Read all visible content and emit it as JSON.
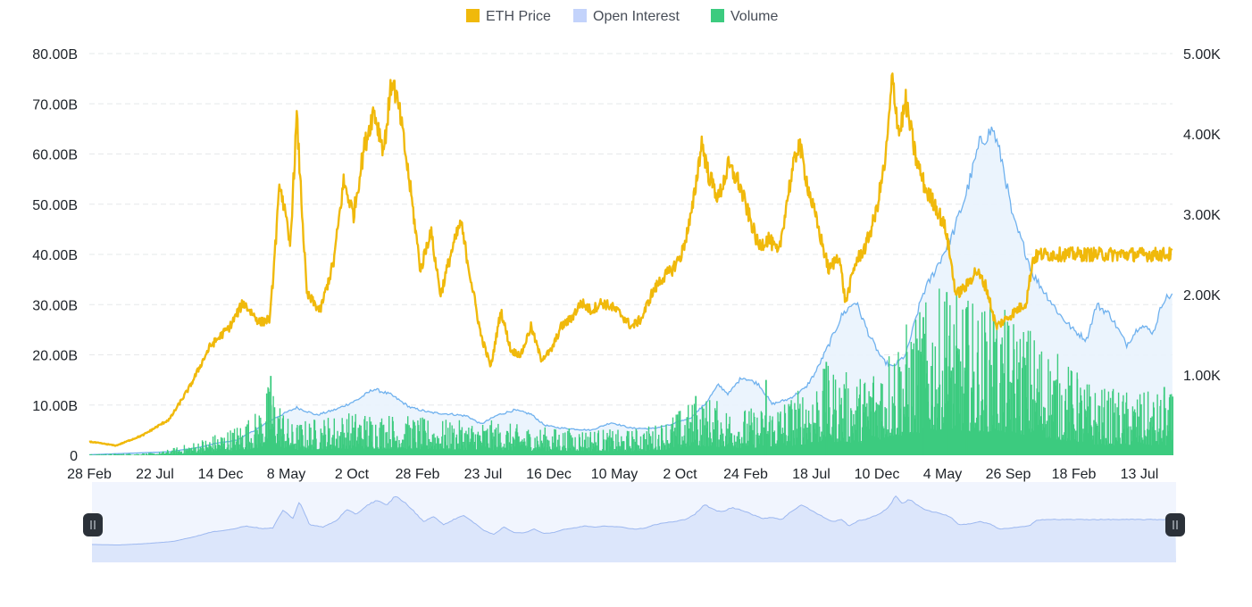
{
  "legend": {
    "items": [
      {
        "label": "ETH Price",
        "color": "#F0B90B"
      },
      {
        "label": "Open Interest",
        "color": "#C3D3FB"
      },
      {
        "label": "Volume",
        "color": "#3CCB7F"
      }
    ]
  },
  "colors": {
    "price_line": "#F0B90B",
    "oi_line": "#6FB1EE",
    "oi_fill": "#E9F3FD",
    "volume_bar": "#3CCB7F",
    "grid": "#E6E8EA",
    "axis_text": "#1E2329",
    "navigator_bg": "#F1F5FE",
    "navigator_fill": "#DCE6FB",
    "navigator_line": "#9DB8F0",
    "handle": "#2B3139"
  },
  "chart_data": {
    "type": "line",
    "title": "",
    "left_axis": {
      "range": [
        0,
        80000000000
      ],
      "tick_values": [
        0,
        10000000000,
        20000000000,
        30000000000,
        40000000000,
        50000000000,
        60000000000,
        70000000000,
        80000000000
      ],
      "tick_labels": [
        "0",
        "10.00B",
        "20.00B",
        "30.00B",
        "40.00B",
        "50.00B",
        "60.00B",
        "70.00B",
        "80.00B"
      ]
    },
    "right_axis": {
      "range": [
        0,
        5000
      ],
      "tick_values": [
        1000,
        2000,
        3000,
        4000,
        5000
      ],
      "tick_labels": [
        "1.00K",
        "2.00K",
        "3.00K",
        "4.00K",
        "5.00K"
      ]
    },
    "x_axis": {
      "tick_labels": [
        "28 Feb",
        "22 Jul",
        "14 Dec",
        "8 May",
        "2 Oct",
        "28 Feb",
        "23 Jul",
        "16 Dec",
        "10 May",
        "2 Oct",
        "24 Feb",
        "18 Jul",
        "10 Dec",
        "4 May",
        "26 Sep",
        "18 Feb",
        "13 Jul"
      ]
    },
    "grid": true,
    "legend_position": "top-center",
    "series": [
      {
        "name": "ETH Price",
        "axis": "right",
        "type": "line",
        "points": [
          [
            0,
            170
          ],
          [
            80,
            120
          ],
          [
            160,
            250
          ],
          [
            240,
            450
          ],
          [
            300,
            850
          ],
          [
            360,
            1350
          ],
          [
            420,
            1600
          ],
          [
            460,
            1900
          ],
          [
            510,
            1650
          ],
          [
            540,
            1700
          ],
          [
            570,
            3400
          ],
          [
            600,
            2600
          ],
          [
            620,
            4200
          ],
          [
            650,
            2000
          ],
          [
            690,
            1800
          ],
          [
            730,
            2400
          ],
          [
            760,
            3400
          ],
          [
            790,
            3000
          ],
          [
            820,
            3800
          ],
          [
            850,
            4300
          ],
          [
            880,
            3800
          ],
          [
            905,
            4700
          ],
          [
            930,
            4200
          ],
          [
            960,
            3300
          ],
          [
            990,
            2300
          ],
          [
            1020,
            2800
          ],
          [
            1050,
            2000
          ],
          [
            1080,
            2500
          ],
          [
            1110,
            2900
          ],
          [
            1140,
            2200
          ],
          [
            1170,
            1500
          ],
          [
            1200,
            1100
          ],
          [
            1230,
            1800
          ],
          [
            1260,
            1300
          ],
          [
            1290,
            1250
          ],
          [
            1320,
            1600
          ],
          [
            1350,
            1200
          ],
          [
            1380,
            1300
          ],
          [
            1410,
            1600
          ],
          [
            1440,
            1700
          ],
          [
            1470,
            1900
          ],
          [
            1500,
            1800
          ],
          [
            1530,
            1900
          ],
          [
            1560,
            1850
          ],
          [
            1590,
            1750
          ],
          [
            1620,
            1600
          ],
          [
            1650,
            1700
          ],
          [
            1680,
            2000
          ],
          [
            1710,
            2200
          ],
          [
            1740,
            2300
          ],
          [
            1770,
            2500
          ],
          [
            1800,
            3000
          ],
          [
            1830,
            3900
          ],
          [
            1850,
            3500
          ],
          [
            1880,
            3200
          ],
          [
            1910,
            3600
          ],
          [
            1940,
            3400
          ],
          [
            1970,
            3000
          ],
          [
            2000,
            2600
          ],
          [
            2030,
            2700
          ],
          [
            2060,
            2500
          ],
          [
            2090,
            3300
          ],
          [
            2120,
            3900
          ],
          [
            2150,
            3300
          ],
          [
            2180,
            2800
          ],
          [
            2210,
            2300
          ],
          [
            2240,
            2500
          ],
          [
            2260,
            1900
          ],
          [
            2290,
            2400
          ],
          [
            2320,
            2600
          ],
          [
            2350,
            3000
          ],
          [
            2380,
            3700
          ],
          [
            2400,
            4700
          ],
          [
            2420,
            4000
          ],
          [
            2440,
            4400
          ],
          [
            2470,
            3700
          ],
          [
            2500,
            3300
          ],
          [
            2530,
            3100
          ],
          [
            2560,
            2800
          ],
          [
            2590,
            2000
          ],
          [
            2620,
            2100
          ],
          [
            2650,
            2300
          ],
          [
            2680,
            2100
          ],
          [
            2710,
            1600
          ],
          [
            2740,
            1700
          ],
          [
            2770,
            1800
          ],
          [
            2800,
            1900
          ],
          [
            2820,
            2450
          ],
          [
            2842,
            2500
          ]
        ]
      },
      {
        "name": "Open Interest",
        "axis": "left",
        "type": "area",
        "points": [
          [
            0,
            100000000
          ],
          [
            120,
            400000000
          ],
          [
            240,
            700000000
          ],
          [
            330,
            1600000000
          ],
          [
            380,
            2400000000
          ],
          [
            440,
            3000000000
          ],
          [
            500,
            5200000000
          ],
          [
            560,
            7600000000
          ],
          [
            620,
            9500000000
          ],
          [
            680,
            8000000000
          ],
          [
            740,
            9200000000
          ],
          [
            800,
            11000000000
          ],
          [
            850,
            13200000000
          ],
          [
            900,
            12100000000
          ],
          [
            960,
            9500000000
          ],
          [
            1020,
            8500000000
          ],
          [
            1080,
            8200000000
          ],
          [
            1130,
            7800000000
          ],
          [
            1170,
            6200000000
          ],
          [
            1220,
            8000000000
          ],
          [
            1270,
            9000000000
          ],
          [
            1320,
            8200000000
          ],
          [
            1360,
            6000000000
          ],
          [
            1400,
            5500000000
          ],
          [
            1450,
            5200000000
          ],
          [
            1500,
            5000000000
          ],
          [
            1560,
            6500000000
          ],
          [
            1620,
            5400000000
          ],
          [
            1680,
            5300000000
          ],
          [
            1740,
            6100000000
          ],
          [
            1800,
            7600000000
          ],
          [
            1840,
            10200000000
          ],
          [
            1880,
            14000000000
          ],
          [
            1910,
            12200000000
          ],
          [
            1950,
            15600000000
          ],
          [
            2000,
            14200000000
          ],
          [
            2040,
            10200000000
          ],
          [
            2090,
            11200000000
          ],
          [
            2140,
            13400000000
          ],
          [
            2170,
            16500000000
          ],
          [
            2210,
            22000000000
          ],
          [
            2250,
            28000000000
          ],
          [
            2290,
            30700000000
          ],
          [
            2330,
            24000000000
          ],
          [
            2370,
            19000000000
          ],
          [
            2400,
            17500000000
          ],
          [
            2440,
            20000000000
          ],
          [
            2490,
            32000000000
          ],
          [
            2540,
            38500000000
          ],
          [
            2580,
            44000000000
          ],
          [
            2620,
            52000000000
          ],
          [
            2660,
            62000000000
          ],
          [
            2700,
            65000000000
          ],
          [
            2730,
            58000000000
          ],
          [
            2760,
            47000000000
          ],
          [
            2790,
            42000000000
          ],
          [
            2820,
            36000000000
          ],
          [
            2860,
            32000000000
          ],
          [
            2900,
            28000000000
          ],
          [
            2940,
            25000000000
          ],
          [
            2980,
            23000000000
          ],
          [
            3010,
            30000000000
          ],
          [
            3050,
            28000000000
          ],
          [
            3100,
            22000000000
          ],
          [
            3140,
            26000000000
          ],
          [
            3180,
            24500000000
          ],
          [
            3210,
            31000000000
          ],
          [
            3237,
            32000000000
          ]
        ]
      },
      {
        "name": "Volume",
        "axis": "left",
        "type": "bar",
        "envelope": [
          [
            0,
            200000000
          ],
          [
            200,
            500000000
          ],
          [
            300,
            2500000000
          ],
          [
            420,
            5500000000
          ],
          [
            500,
            9000000000
          ],
          [
            540,
            15500000000
          ],
          [
            600,
            6500000000
          ],
          [
            700,
            8000000000
          ],
          [
            800,
            9000000000
          ],
          [
            900,
            8500000000
          ],
          [
            1000,
            7500000000
          ],
          [
            1100,
            7000000000
          ],
          [
            1200,
            7000000000
          ],
          [
            1300,
            6000000000
          ],
          [
            1400,
            5500000000
          ],
          [
            1500,
            5500000000
          ],
          [
            1600,
            5000000000
          ],
          [
            1700,
            6500000000
          ],
          [
            1800,
            11000000000
          ],
          [
            1850,
            12000000000
          ],
          [
            1900,
            10000000000
          ],
          [
            2000,
            9500000000
          ],
          [
            2100,
            12500000000
          ],
          [
            2200,
            18000000000
          ],
          [
            2300,
            16000000000
          ],
          [
            2400,
            24000000000
          ],
          [
            2500,
            31000000000
          ],
          [
            2550,
            34000000000
          ],
          [
            2600,
            32000000000
          ],
          [
            2700,
            30000000000
          ],
          [
            2800,
            27000000000
          ],
          [
            2900,
            20000000000
          ],
          [
            3000,
            14000000000
          ],
          [
            3100,
            13000000000
          ],
          [
            3237,
            12500000000
          ]
        ],
        "spikes": [
          [
            540,
            15800000000
          ],
          [
            1810,
            11800000000
          ],
          [
            2020,
            15000000000
          ],
          [
            2200,
            18600000000
          ],
          [
            2490,
            27500000000
          ],
          [
            2560,
            32500000000
          ],
          [
            2620,
            29500000000
          ],
          [
            2700,
            27000000000
          ],
          [
            2950,
            15200000000
          ],
          [
            3210,
            13600000000
          ]
        ]
      }
    ],
    "navigator": {
      "handles": [
        "left",
        "right"
      ],
      "range_fraction": [
        0,
        1
      ]
    }
  }
}
